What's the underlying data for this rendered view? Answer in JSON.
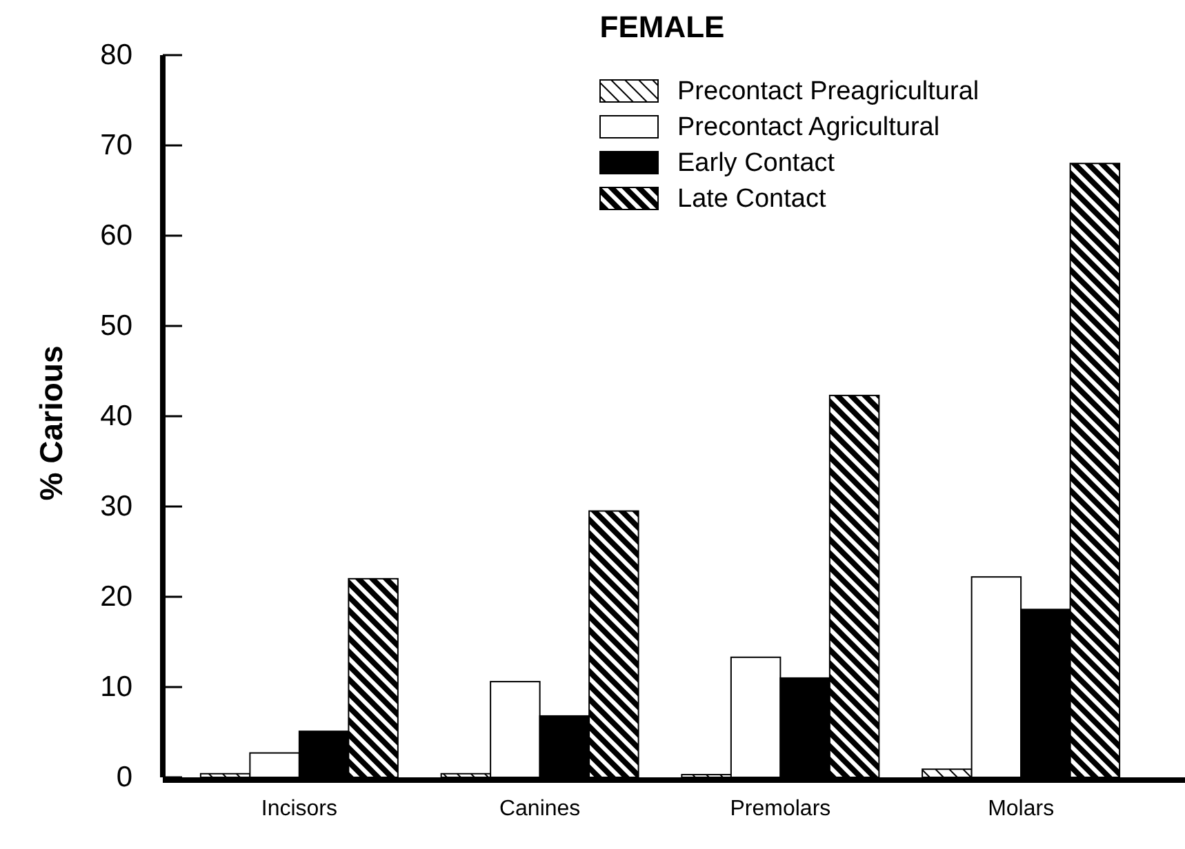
{
  "chart_data": {
    "type": "bar",
    "title": "FEMALE",
    "ylabel": "% Carious",
    "categories": [
      "Incisors",
      "Canines",
      "Premolars",
      "Molars"
    ],
    "series": [
      {
        "name": "Precontact Preagricultural",
        "color": "#000000",
        "values": [
          0.4,
          0.4,
          0.3,
          0.9
        ]
      },
      {
        "name": "Precontact Agricultural",
        "color": "#ffffff",
        "values": [
          2.7,
          10.6,
          13.3,
          22.2
        ]
      },
      {
        "name": "Early Contact",
        "color": "#000000",
        "values": [
          5.1,
          6.8,
          11.0,
          18.6
        ]
      },
      {
        "name": "Late Contact",
        "color": "#000000",
        "values": [
          22,
          29.5,
          42.3,
          68
        ]
      }
    ],
    "ylim": [
      0,
      80
    ],
    "yticks": [
      0,
      10,
      20,
      30,
      40,
      50,
      60,
      70,
      80
    ],
    "legend": "top right",
    "grid": false
  }
}
